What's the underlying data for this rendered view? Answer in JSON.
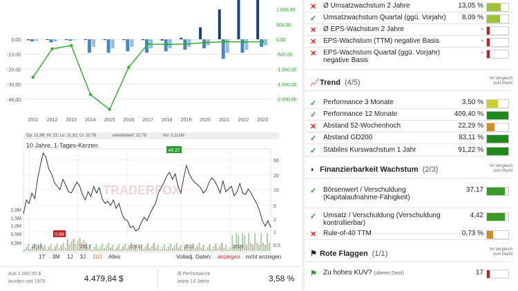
{
  "growth_chart": {
    "y_ticks_left": [
      "0,00",
      "-10,00",
      "-20,00",
      "-30,00",
      "-40,00"
    ],
    "y_ticks_right": [
      "1.000,00",
      "500,00",
      "0,00",
      "-500,00",
      "-1.000,00",
      "-1.500,00",
      "-2.000,00"
    ],
    "years": [
      "2011",
      "2012",
      "2013",
      "2014",
      "2015",
      "2016",
      "2017",
      "2018",
      "2019",
      "2020",
      "2021",
      "2022",
      "2023"
    ]
  },
  "price_chart": {
    "info_bar": [
      "Op: 21,96; Hi: 23; Lo: 21,91; Cl: 22,78",
      "vollständert: 22,78",
      "Vol: 0,113M"
    ],
    "title": "10 Jahre, 1-Tages-Kerzen",
    "high_label": "44,37",
    "low_label": "0,68",
    "watermark": "TRADERFOX",
    "y_right": [
      "50",
      "20",
      "10",
      "5",
      "2",
      "1",
      "0,5"
    ],
    "y_left_vol": [
      "2,0M",
      "1,5M",
      "1,0M",
      "0,5M",
      "0,0M"
    ],
    "x_labels": [
      "2015",
      "2017",
      "2019",
      "2021",
      "2023"
    ],
    "ranges": [
      "1T",
      "3M",
      "1J",
      "3J",
      "10J",
      "Alles"
    ],
    "active_range": "10J",
    "volldaj_label": "Volladj. Daten:",
    "show": "anzeigen",
    "hide": "nicht anzeigen"
  },
  "summary": {
    "invest_label_1": "Aus 1.000,00 $",
    "invest_label_2": "wurden seit 1970",
    "invest_value": "4.479,84 $",
    "perf_label_1": "Ø Performance",
    "perf_label_2": "letzte 10 Jahre",
    "perf_value": "3,58 %"
  },
  "growth_rows": [
    {
      "mark": "✕",
      "ok": false,
      "label": "Ø Umsatzwachstum 2 Jahre",
      "value": "13,05 %",
      "color": "#9cc434",
      "fill": 0.65
    },
    {
      "mark": "✓",
      "ok": true,
      "label": "Umsatzwachstum Quartal (ggü. Vorjahr)",
      "value": "8,09 %",
      "color": "#9cc434",
      "fill": 0.6
    },
    {
      "mark": "✕",
      "ok": false,
      "label": "Ø EPS-Wachstum 2 Jahre",
      "value": "-",
      "color": "#c42020",
      "fill": 0.12
    },
    {
      "mark": "✕",
      "ok": false,
      "label": "EPS-Wachstum (TTM) negative Basis",
      "value": "-",
      "color": "#c42020",
      "fill": 0.12
    },
    {
      "mark": "✕",
      "ok": false,
      "label": "EPS-Wachstum Quartal (ggü. Vorjahr)",
      "label2": "negative Basis",
      "value": "-",
      "color": "#c42020",
      "fill": 0.12
    }
  ],
  "trend": {
    "title": "Trend",
    "count": "(4/5)",
    "cmp1": "Im Vergleich",
    "cmp2": "zum Markt",
    "rows": [
      {
        "mark": "✓",
        "ok": true,
        "label": "Performance 3 Monate",
        "value": "3,50 %",
        "color": "#c8d02a",
        "fill": 0.5
      },
      {
        "mark": "✓",
        "ok": true,
        "label": "Performance 12 Monate",
        "value": "409,40 %",
        "color": "#1e8a1e",
        "fill": 1
      },
      {
        "mark": "✕",
        "ok": false,
        "label": "Abstand 52-Wochenhoch",
        "value": "22,29 %",
        "color": "#d88a1a",
        "fill": 0.35
      },
      {
        "mark": "✓",
        "ok": true,
        "label": "Abstand GD200",
        "value": "83,11 %",
        "color": "#1e8a1e",
        "fill": 1
      },
      {
        "mark": "✓",
        "ok": true,
        "label": "Stabiles Kurswachstum 1 Jahr",
        "value": "91,22 %",
        "color": "#1e8a1e",
        "fill": 1
      }
    ]
  },
  "finance": {
    "title": "Finanzierbarkeit Wachstum",
    "count": "(2/3)",
    "cmp1": "Im Vergleich",
    "cmp2": "zum Markt",
    "rows": [
      {
        "mark": "✓",
        "ok": true,
        "label": "Börsenwert / Verschuldung",
        "label2": "(Kapitalaufnahme-Fähigkeit)",
        "value": "37,17",
        "color": "#3a9a2a",
        "fill": 0.85
      },
      {
        "mark": "✓",
        "ok": true,
        "label": "Umsatz / Verschuldung (Verschuldung",
        "label2": "kontrollierbar)",
        "value": "4,42",
        "color": "#3a9a2a",
        "fill": 0.85
      },
      {
        "mark": "✕",
        "ok": false,
        "label": "Rule-of-40 TTM",
        "value": "0,73 %",
        "color": "#d88a1a",
        "fill": 0.3
      }
    ]
  },
  "flags": {
    "title": "Rote Flaggen",
    "count": "(1/1)",
    "cmp1": "Im Vergleich",
    "cmp2": "zum Markt",
    "rows": [
      {
        "mark": "⚑",
        "ok": true,
        "label": "Zu hohes KUV?",
        "label_small": "(oberes Dezil)",
        "value": "17",
        "color": "#c42020",
        "fill": 0.12
      }
    ]
  }
}
